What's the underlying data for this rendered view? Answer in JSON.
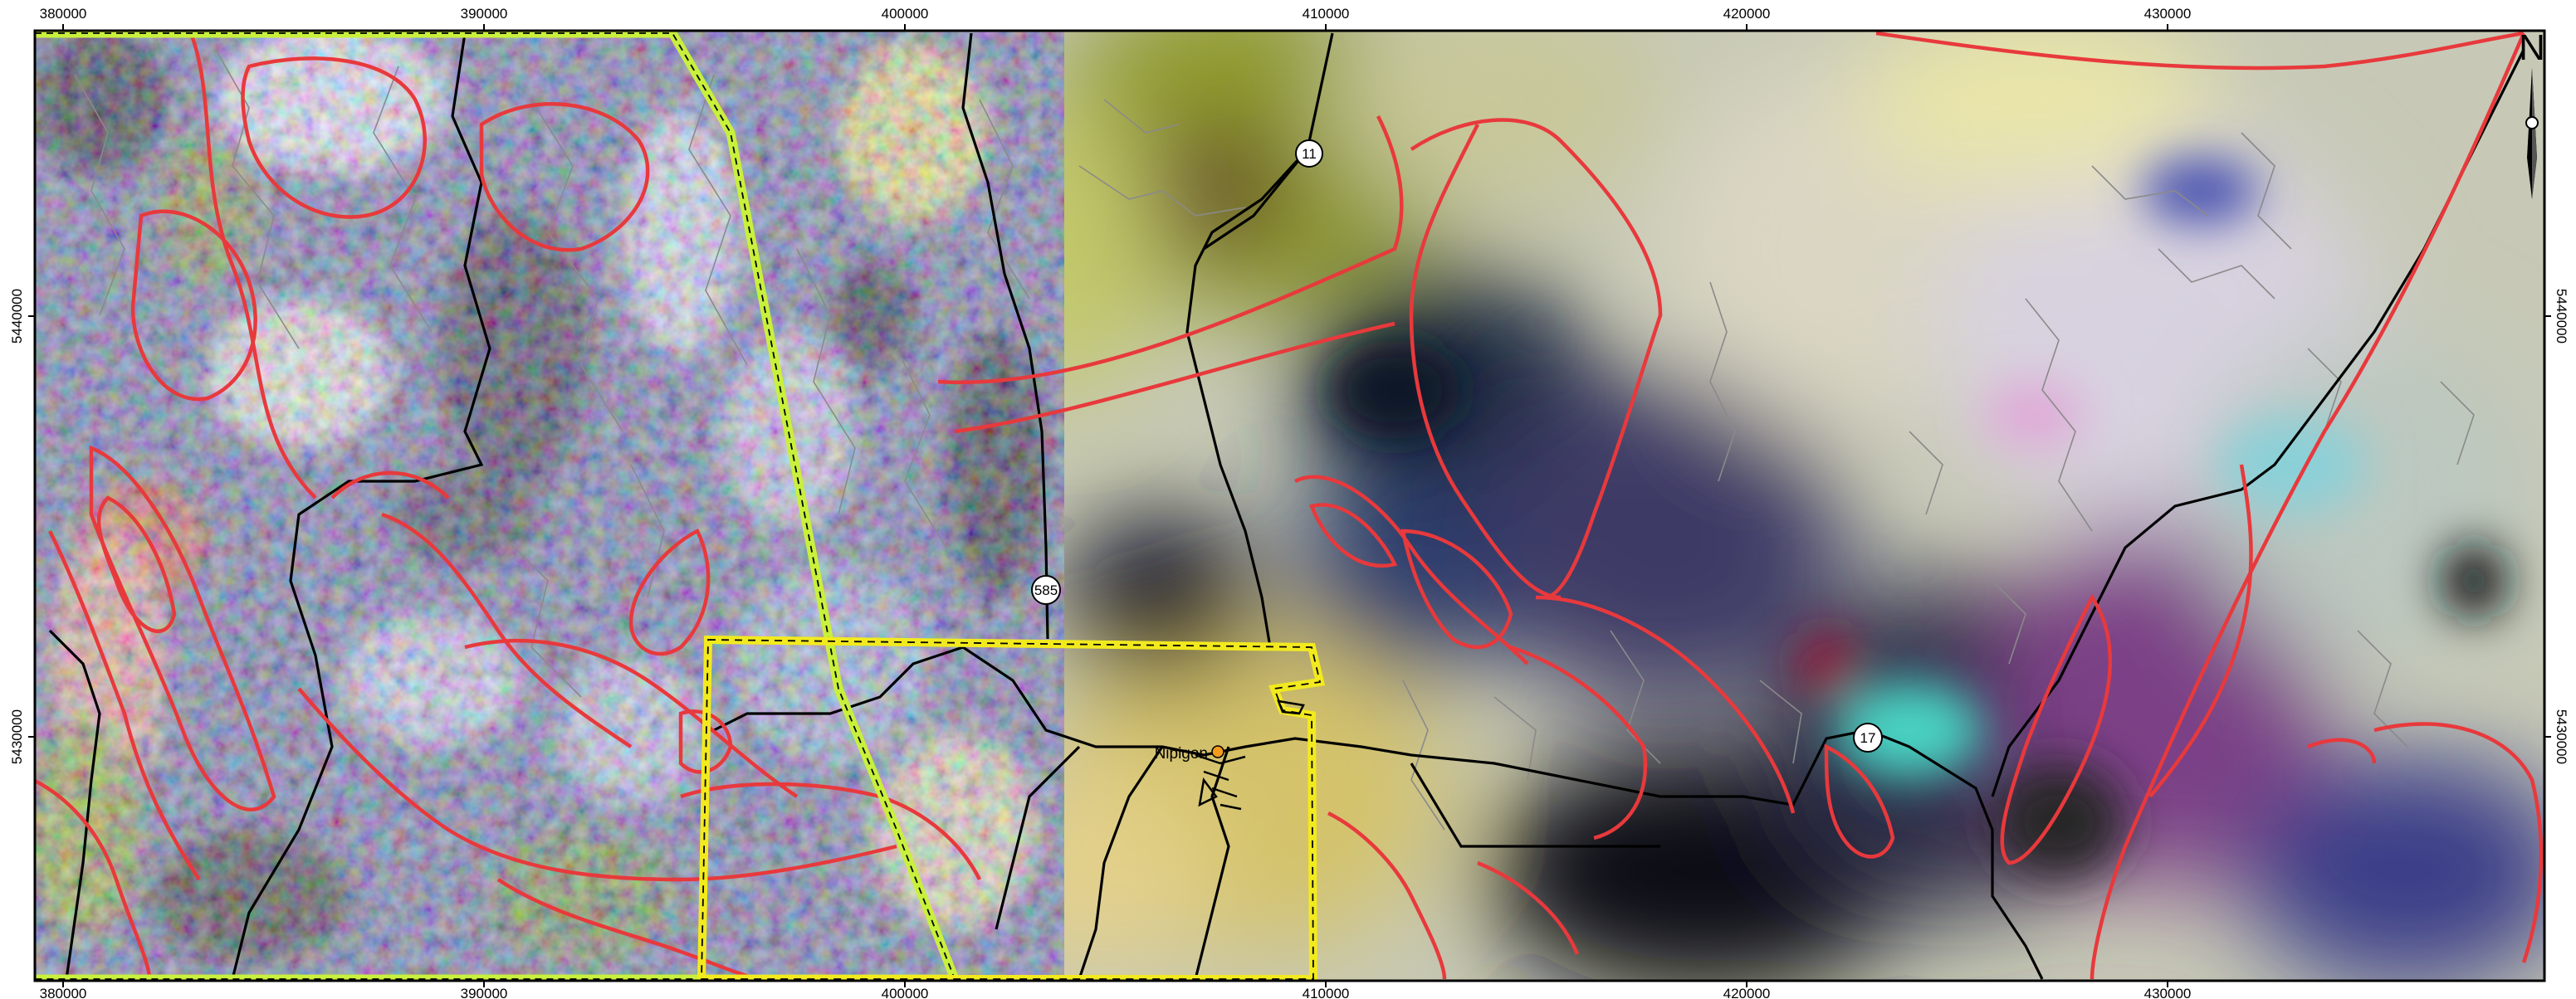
{
  "map": {
    "easting_ticks": [
      "380000",
      "390000",
      "400000",
      "410000",
      "420000",
      "430000"
    ],
    "northing_ticks": [
      "5440000",
      "5430000"
    ],
    "route_shields": [
      "11",
      "585",
      "17"
    ],
    "town": "Nipigon",
    "north_label": "N",
    "colors": {
      "frame": "#000000",
      "geology_contacts": "#e8393c",
      "survey_boundary": "#f2ea1e",
      "claim_boundary": "#c8f03c",
      "roads": "#000000",
      "drainage": "#8a8a8a",
      "town_marker": "#f39a1d"
    },
    "icons": [
      "north-arrow-icon",
      "route-shield-icon",
      "town-marker-icon"
    ]
  }
}
